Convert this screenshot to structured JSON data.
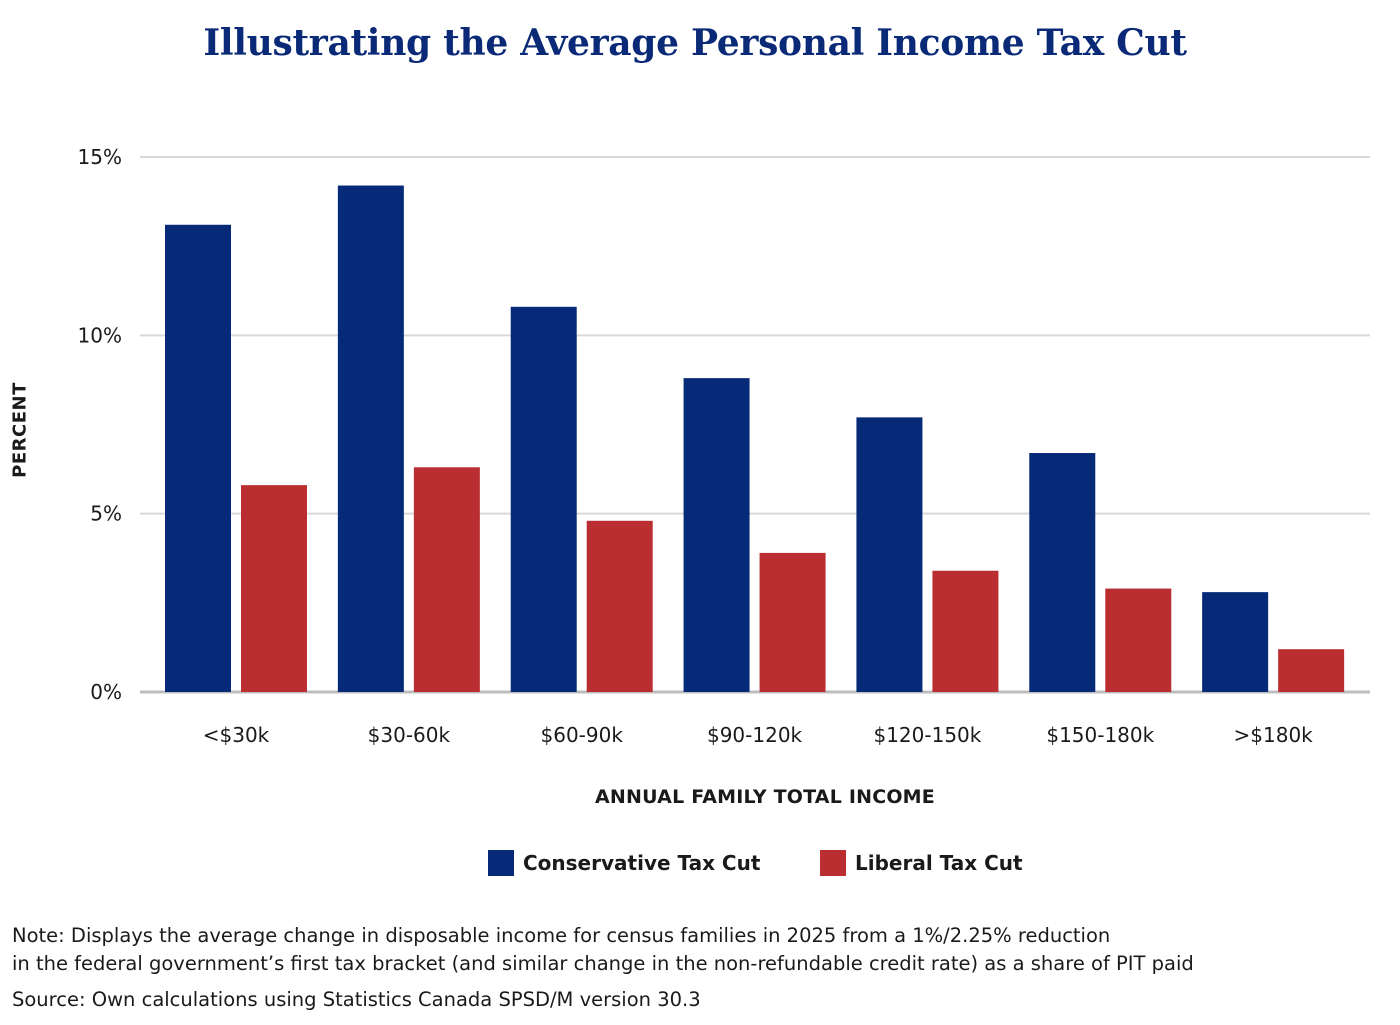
{
  "title": "Illustrating the Average Personal Income Tax Cut",
  "colors": {
    "conservative": "#072a78",
    "liberal": "#ba2e32",
    "gridline": "#d9d9d9",
    "axis": "#bdbdbd",
    "title": "#0a2a78"
  },
  "chart_data": {
    "type": "bar",
    "title": "Illustrating the Average Personal Income Tax Cut",
    "xlabel": "ANNUAL FAMILY TOTAL INCOME",
    "ylabel": "PERCENT",
    "categories": [
      "<$30k",
      "$30-60k",
      "$60-90k",
      "$90-120k",
      "$120-150k",
      "$150-180k",
      ">$180k"
    ],
    "series": [
      {
        "name": "Conservative Tax Cut",
        "values": [
          13.1,
          14.2,
          10.8,
          8.8,
          7.7,
          6.7,
          2.8
        ]
      },
      {
        "name": "Liberal Tax Cut",
        "values": [
          5.8,
          6.3,
          4.8,
          3.9,
          3.4,
          2.9,
          1.2
        ]
      }
    ],
    "ylim": [
      0,
      15
    ],
    "yticks": [
      0,
      5,
      10,
      15
    ],
    "ytick_labels": [
      "0%",
      "5%",
      "10%",
      "15%"
    ],
    "grid": true,
    "legend": "bottom"
  },
  "legend": {
    "conservative_label": "Conservative Tax Cut",
    "liberal_label": "Liberal Tax Cut"
  },
  "note": {
    "line1": "Note: Displays the average change in disposable income for census families in 2025 from a 1%/2.25% reduction",
    "line2": "in the federal government’s first tax bracket (and similar change in the non-refundable credit rate) as a share of PIT paid",
    "source": "Source: Own calculations using Statistics Canada SPSD/M version 30.3"
  }
}
